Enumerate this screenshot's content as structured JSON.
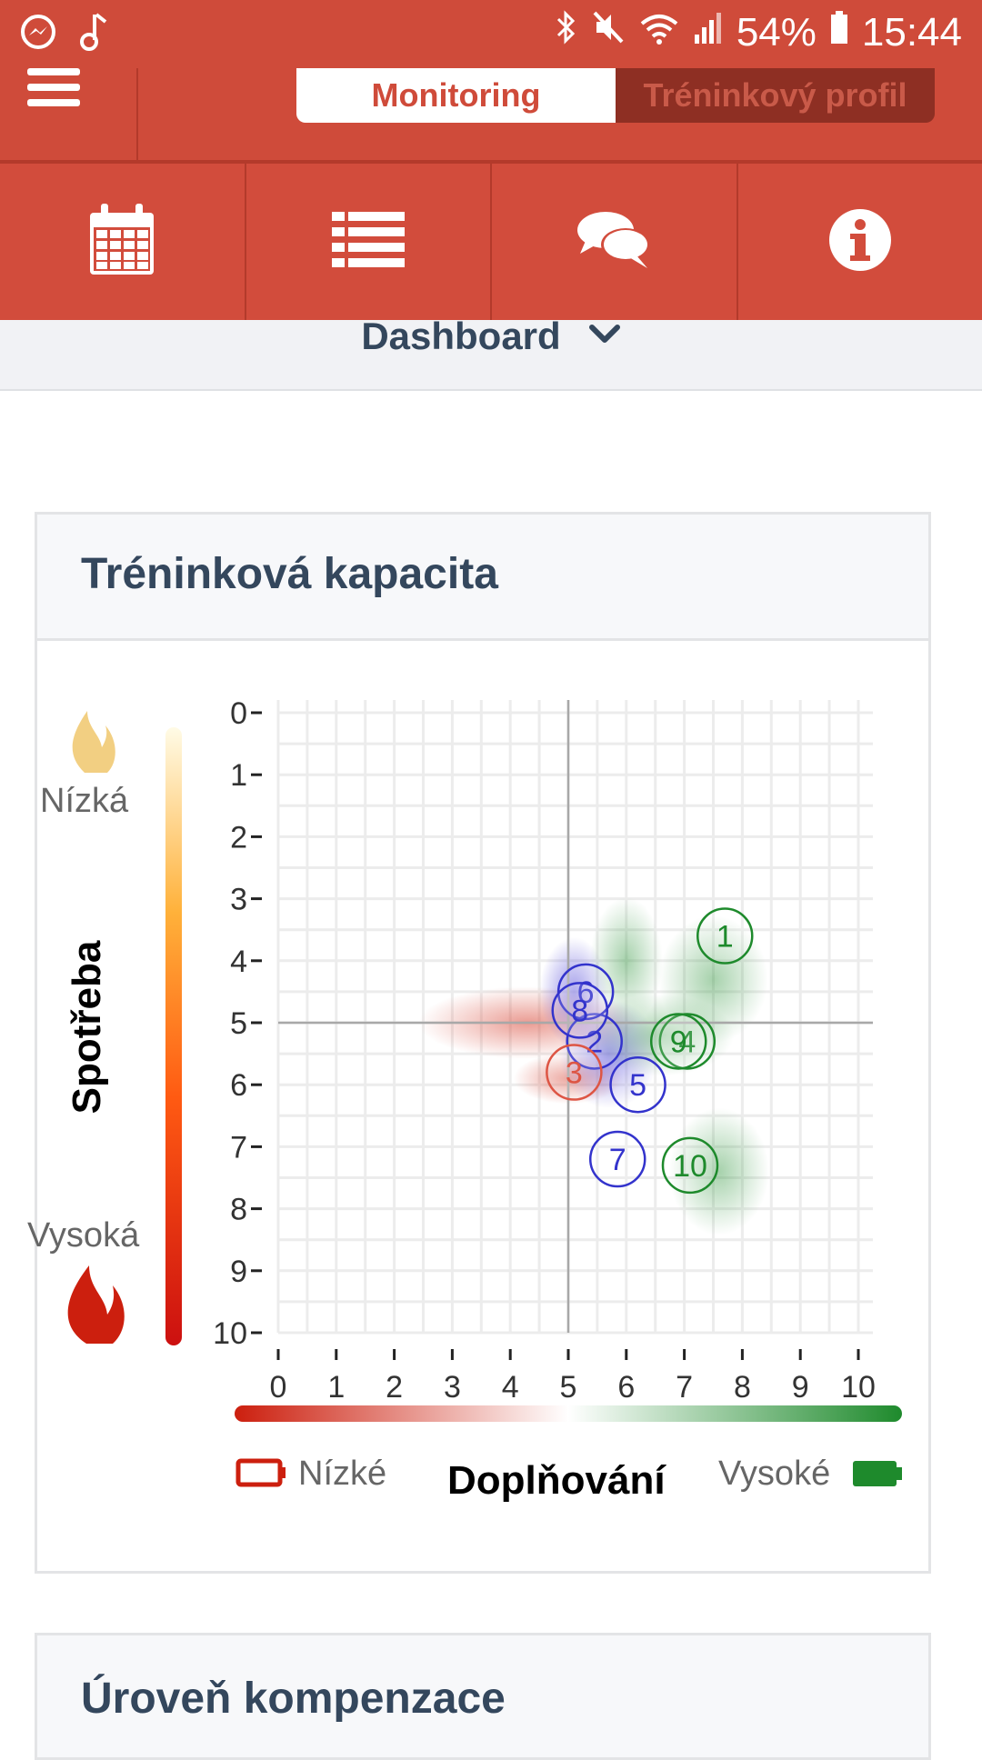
{
  "status_bar": {
    "left_icons": [
      "messenger-icon",
      "music-note-icon"
    ],
    "right_icons": [
      "bluetooth-icon",
      "mute-icon",
      "wifi-icon",
      "signal-icon",
      "battery-icon"
    ],
    "battery": "54%",
    "time": "15:44"
  },
  "header": {
    "menu_icon": "hamburger-menu-icon",
    "tabs": [
      {
        "label": "Monitoring",
        "active": true
      },
      {
        "label": "Tréninkový profil",
        "active": false
      }
    ]
  },
  "icon_nav": [
    {
      "icon": "calendar-icon"
    },
    {
      "icon": "list-icon"
    },
    {
      "icon": "chat-bubbles-icon"
    },
    {
      "icon": "info-icon"
    }
  ],
  "dashboard": {
    "label": "Dashboard",
    "icon": "chevron-down-icon"
  },
  "card1": {
    "title": "Tréninková kapacita"
  },
  "card2": {
    "title": "Úroveň kompenzace"
  },
  "chart_data": {
    "type": "scatter",
    "xlabel": "Doplňování",
    "ylabel": "Spotřeba",
    "x_ticks": [
      "0",
      "1",
      "2",
      "3",
      "4",
      "5",
      "6",
      "7",
      "8",
      "9",
      "10"
    ],
    "y_ticks": [
      "0",
      "1",
      "2",
      "3",
      "4",
      "5",
      "6",
      "7",
      "8",
      "9",
      "10"
    ],
    "xlim": [
      0,
      10
    ],
    "ylim": [
      0,
      10
    ],
    "y_inverted": true,
    "grid": true,
    "crosshair": [
      5,
      5
    ],
    "y_scale_labels": {
      "top": "Nízká",
      "bottom": "Vysoká"
    },
    "x_scale_labels": {
      "left": "Nízké",
      "right": "Vysoké"
    },
    "colors": {
      "low": "#cc1f0e",
      "high": "#1e8a2c",
      "mid": "#3333cc"
    },
    "points": [
      {
        "label": "1",
        "x": 7.7,
        "y": 3.6,
        "color": "#1e8a2c"
      },
      {
        "label": "2",
        "x": 5.45,
        "y": 5.3,
        "color": "#3333cc"
      },
      {
        "label": "3",
        "x": 5.1,
        "y": 5.8,
        "color": "#dd5544"
      },
      {
        "label": "4",
        "x": 7.05,
        "y": 5.3,
        "color": "#1e8a2c"
      },
      {
        "label": "5",
        "x": 6.2,
        "y": 6.0,
        "color": "#3333cc"
      },
      {
        "label": "6",
        "x": 5.3,
        "y": 4.5,
        "color": "#3333cc"
      },
      {
        "label": "7",
        "x": 5.85,
        "y": 7.2,
        "color": "#3333cc"
      },
      {
        "label": "8",
        "x": 5.2,
        "y": 4.8,
        "color": "#3333cc"
      },
      {
        "label": "9",
        "x": 6.9,
        "y": 5.3,
        "color": "#1e8a2c"
      },
      {
        "label": "10",
        "x": 7.1,
        "y": 7.3,
        "color": "#1e8a2c"
      }
    ]
  }
}
